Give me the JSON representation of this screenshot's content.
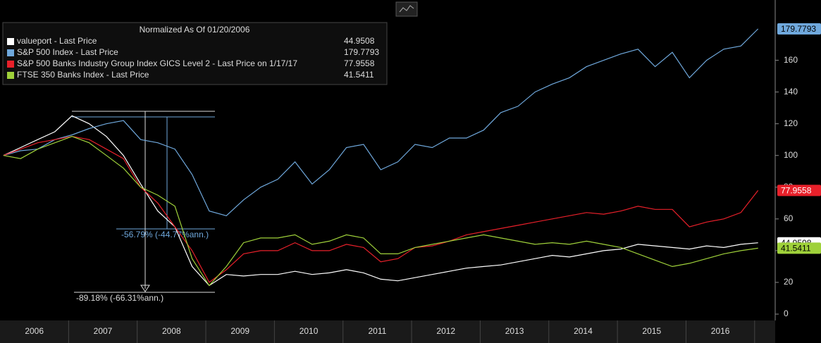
{
  "chart_data": {
    "type": "line",
    "title": "Normalized As Of 01/20/2006",
    "x": [
      2006.05,
      2006.3,
      2006.55,
      2006.8,
      2007.05,
      2007.3,
      2007.55,
      2007.8,
      2008.05,
      2008.3,
      2008.55,
      2008.8,
      2009.05,
      2009.3,
      2009.55,
      2009.8,
      2010.05,
      2010.3,
      2010.55,
      2010.8,
      2011.05,
      2011.3,
      2011.55,
      2011.8,
      2012.05,
      2012.3,
      2012.55,
      2012.8,
      2013.05,
      2013.3,
      2013.55,
      2013.8,
      2014.05,
      2014.3,
      2014.55,
      2014.8,
      2015.05,
      2015.3,
      2015.55,
      2015.8,
      2016.05,
      2016.3,
      2016.55,
      2016.8,
      2017.05
    ],
    "series": [
      {
        "name": "valueport - Last Price",
        "color": "#ffffff",
        "values": [
          100,
          105,
          110,
          115,
          125,
          120,
          112,
          100,
          82,
          65,
          55,
          30,
          18,
          25,
          24,
          25,
          25,
          27,
          25,
          26,
          28,
          26,
          22,
          21,
          23,
          25,
          27,
          29,
          30,
          31,
          33,
          35,
          37,
          36,
          38,
          40,
          41,
          44,
          43,
          42,
          41,
          43,
          42,
          44,
          44.9508
        ]
      },
      {
        "name": "S&P 500 Index - Last Price",
        "color": "#6fa8dc",
        "values": [
          100,
          103,
          104,
          110,
          113,
          117,
          120,
          122,
          110,
          108,
          104,
          88,
          65,
          62,
          72,
          80,
          85,
          96,
          82,
          91,
          105,
          107,
          91,
          96,
          107,
          105,
          111,
          111,
          116,
          127,
          131,
          140,
          145,
          149,
          156,
          160,
          164,
          167,
          156,
          165,
          149,
          160,
          167,
          169,
          179.7793
        ]
      },
      {
        "name": "S&P 500 Banks Industry Group Index GICS Level 2 - Last Price on 1/17/17",
        "color": "#e8202a",
        "values": [
          100,
          104,
          108,
          110,
          112,
          110,
          104,
          98,
          80,
          70,
          55,
          40,
          20,
          28,
          38,
          40,
          40,
          45,
          40,
          40,
          44,
          42,
          33,
          35,
          42,
          43,
          46,
          50,
          52,
          54,
          56,
          58,
          60,
          62,
          64,
          63,
          65,
          68,
          66,
          66,
          55,
          58,
          60,
          64,
          77.9558
        ]
      },
      {
        "name": "FTSE 350 Banks Index - Last Price",
        "color": "#9fd13a",
        "values": [
          100,
          98,
          104,
          108,
          112,
          108,
          100,
          92,
          80,
          75,
          68,
          35,
          18,
          30,
          45,
          48,
          48,
          50,
          44,
          46,
          50,
          48,
          38,
          38,
          42,
          44,
          46,
          48,
          50,
          48,
          46,
          44,
          45,
          44,
          46,
          44,
          42,
          38,
          34,
          30,
          32,
          35,
          38,
          40,
          41.5411
        ]
      }
    ],
    "xlim": [
      2006,
      2017.3
    ],
    "xticks": [
      {
        "value": 2006.5,
        "label": "2006"
      },
      {
        "value": 2007.5,
        "label": "2007"
      },
      {
        "value": 2008.5,
        "label": "2008"
      },
      {
        "value": 2009.5,
        "label": "2009"
      },
      {
        "value": 2010.5,
        "label": "2010"
      },
      {
        "value": 2011.5,
        "label": "2011"
      },
      {
        "value": 2012.5,
        "label": "2012"
      },
      {
        "value": 2013.5,
        "label": "2013"
      },
      {
        "value": 2014.5,
        "label": "2014"
      },
      {
        "value": 2015.5,
        "label": "2015"
      },
      {
        "value": 2016.5,
        "label": "2016"
      }
    ],
    "ylim": [
      -4,
      198
    ],
    "yticks": [
      0,
      20,
      40,
      60,
      80,
      100,
      120,
      140,
      160
    ],
    "annotations": [
      "-56.79% (-44.77%ann.)",
      "-89.18% (-66.31%ann.)"
    ]
  }
}
